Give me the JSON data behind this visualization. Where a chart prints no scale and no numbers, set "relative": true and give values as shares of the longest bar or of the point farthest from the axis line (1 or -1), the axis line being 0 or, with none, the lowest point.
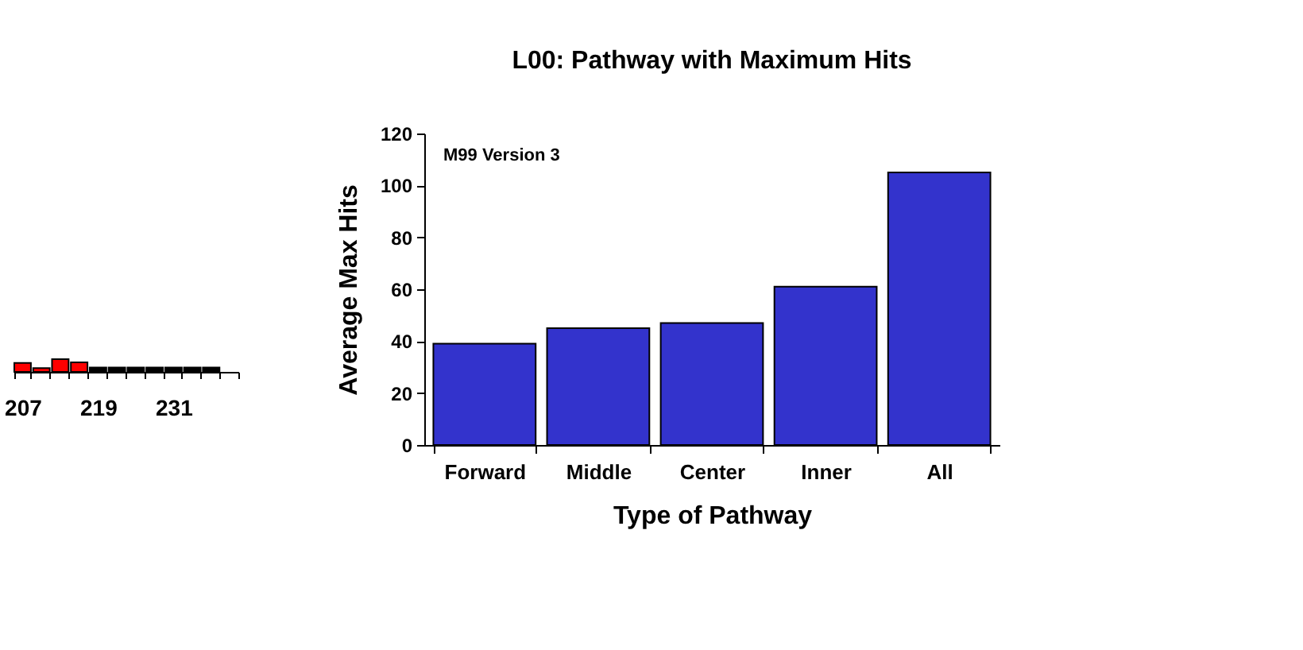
{
  "chart_data": [
    {
      "type": "bar",
      "relative": true,
      "categories": [
        "207",
        null,
        null,
        null,
        "219",
        null,
        null,
        null,
        "231",
        null,
        null,
        null
      ],
      "values": [
        0.7,
        0.3,
        1,
        0.75,
        0.35,
        0.35,
        0.35,
        0.35,
        0.35,
        0.35,
        0.35,
        null
      ],
      "colors": [
        "#ff0000",
        "#ff0000",
        "#ff0000",
        "#ff0000",
        "#000000",
        "#000000",
        "#000000",
        "#000000",
        "#000000",
        "#000000",
        "#000000",
        "#000000"
      ]
    },
    {
      "type": "bar",
      "title": "L00: Pathway with Maximum Hits",
      "xlabel": "Type of Pathway",
      "ylabel": "Average Max Hits",
      "categories": [
        "Forward",
        "Middle",
        "Center",
        "Inner",
        "All"
      ],
      "values": [
        39,
        45,
        47,
        61,
        105
      ],
      "color": "#3333cc",
      "ylim": [
        0,
        120
      ],
      "yticks": [
        0,
        20,
        40,
        60,
        80,
        100,
        120
      ],
      "annotations": [
        "M99 Version 3"
      ]
    }
  ]
}
